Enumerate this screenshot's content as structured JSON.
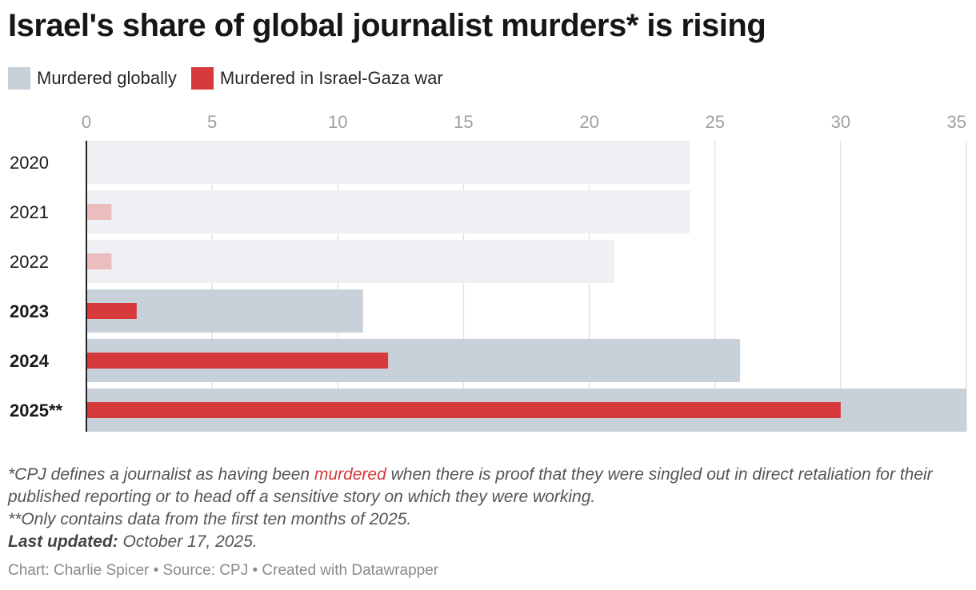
{
  "title": "Israel's share of global journalist murders* is rising",
  "legend": [
    {
      "label": "Murdered globally",
      "color": "#c8d0d9"
    },
    {
      "label": "Murdered in Israel-Gaza war",
      "color": "#d63a3a"
    }
  ],
  "chart_data": {
    "type": "bar",
    "orientation": "horizontal",
    "categories": [
      "2020",
      "2021",
      "2022",
      "2023",
      "2024",
      "2025**"
    ],
    "bold_categories": [
      "2023",
      "2024",
      "2025**"
    ],
    "series": [
      {
        "name": "Murdered globally",
        "values": [
          24,
          24,
          21,
          11,
          26,
          35
        ],
        "color": "#c8d0d9",
        "faded_color": "#eff0f4"
      },
      {
        "name": "Murdered in Israel-Gaza war",
        "values": [
          0,
          1,
          1,
          2,
          12,
          30
        ],
        "color": "#d63a3a",
        "faded_color": "#ebbdbe"
      }
    ],
    "faded_categories": [
      "2020",
      "2021",
      "2022"
    ],
    "xlim": [
      0,
      35
    ],
    "xticks": [
      0,
      5,
      10,
      15,
      20,
      25,
      30,
      35
    ],
    "grid": true,
    "axis_position": "top"
  },
  "footnotes": {
    "line1_pre": "*CPJ defines a journalist as having been ",
    "line1_highlight": "murdered",
    "line1_post": " when there is proof that they were singled out in direct retaliation for their published reporting or to head off a sensitive story on which they were working.",
    "line2": "**Only contains data from the first ten months of 2025.",
    "updated_label": "Last updated:",
    "updated_value": " October 17, 2025."
  },
  "credit": "Chart: Charlie Spicer • Source: CPJ • Created with Datawrapper"
}
